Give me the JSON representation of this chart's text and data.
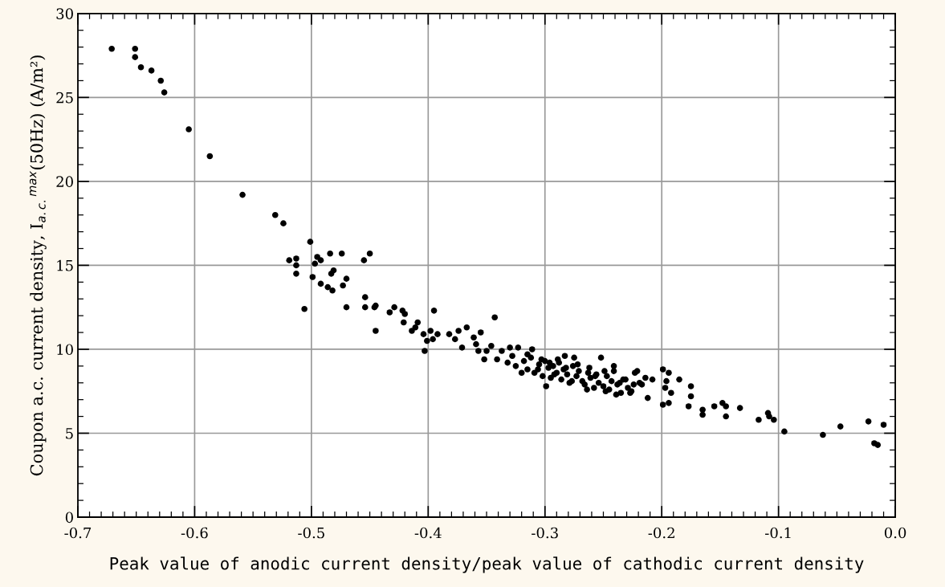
{
  "chart_data": {
    "type": "scatter",
    "xlabel": "Peak value of anodic current density/peak value of cathodic current density",
    "ylabel": "Coupon a.c. current density, I$_{a.c.}$$^{max}$(50Hz) (A/m²)",
    "xlim": [
      -0.7,
      0.0
    ],
    "xticks": [
      -0.7,
      -0.6,
      -0.5,
      -0.4,
      -0.3,
      -0.2,
      -0.1,
      {
        "value": 0,
        "label": "0.0"
      }
    ],
    "ylim": [
      0,
      30
    ],
    "yticks": [
      0,
      5,
      10,
      15,
      20,
      25,
      30
    ],
    "grid": true,
    "marker": "circle",
    "series": [
      {
        "color": "#000000",
        "x": [
          -0.671,
          -0.651,
          -0.651,
          -0.646,
          -0.637,
          -0.629,
          -0.626,
          -0.605,
          -0.587,
          -0.559,
          -0.531,
          -0.524,
          -0.501,
          -0.519,
          -0.513,
          -0.513,
          -0.513,
          -0.506,
          -0.499,
          -0.497,
          -0.495,
          -0.492,
          -0.492,
          -0.486,
          -0.484,
          -0.483,
          -0.481,
          -0.482,
          -0.474,
          -0.473,
          -0.47,
          -0.47,
          -0.455,
          -0.45,
          -0.454,
          -0.454,
          -0.446,
          -0.445,
          -0.445,
          -0.433,
          -0.429,
          -0.422,
          -0.42,
          -0.421,
          -0.409,
          -0.411,
          -0.414,
          -0.404,
          -0.398,
          -0.395,
          -0.392,
          -0.396,
          -0.401,
          -0.403,
          -0.382,
          -0.374,
          -0.367,
          -0.377,
          -0.371,
          -0.361,
          -0.355,
          -0.359,
          -0.357,
          -0.35,
          -0.346,
          -0.343,
          -0.352,
          -0.337,
          -0.33,
          -0.323,
          -0.311,
          -0.32,
          -0.299,
          -0.283,
          -0.275,
          -0.252,
          -0.241,
          -0.241,
          -0.264,
          -0.221,
          -0.223,
          -0.214,
          -0.208,
          -0.199,
          -0.194,
          -0.185,
          -0.175,
          -0.175,
          -0.177,
          -0.196,
          -0.197,
          -0.192,
          -0.199,
          -0.194,
          -0.212,
          -0.227,
          -0.239,
          -0.248,
          -0.217,
          -0.233,
          -0.277,
          -0.292,
          -0.306,
          -0.332,
          -0.341,
          -0.328,
          -0.325,
          -0.318,
          -0.315,
          -0.312,
          -0.309,
          -0.305,
          -0.302,
          -0.3,
          -0.297,
          -0.295,
          -0.293,
          -0.29,
          -0.288,
          -0.286,
          -0.284,
          -0.281,
          -0.279,
          -0.276,
          -0.273,
          -0.271,
          -0.268,
          -0.266,
          -0.263,
          -0.261,
          -0.258,
          -0.256,
          -0.254,
          -0.25,
          -0.247,
          -0.245,
          -0.243,
          -0.238,
          -0.235,
          -0.231,
          -0.229,
          -0.226,
          -0.224,
          -0.219,
          -0.315,
          -0.303,
          -0.296,
          -0.289,
          -0.282,
          -0.272,
          -0.262,
          -0.257,
          -0.249,
          -0.236,
          -0.165,
          -0.165,
          -0.155,
          -0.148,
          -0.145,
          -0.145,
          -0.133,
          -0.117,
          -0.109,
          -0.108,
          -0.104,
          -0.095,
          -0.062,
          -0.047,
          -0.023,
          -0.018,
          -0.015,
          -0.01
        ],
        "values": [
          27.9,
          27.4,
          27.9,
          26.8,
          26.6,
          26.0,
          25.3,
          23.1,
          21.5,
          19.2,
          18.0,
          17.5,
          16.4,
          15.3,
          15.4,
          15.0,
          14.5,
          12.4,
          14.3,
          15.1,
          15.5,
          15.3,
          13.9,
          13.7,
          15.7,
          14.5,
          14.7,
          13.5,
          15.7,
          13.8,
          14.2,
          12.5,
          15.3,
          15.7,
          13.1,
          12.5,
          12.5,
          12.6,
          11.1,
          12.2,
          12.5,
          12.3,
          12.1,
          11.6,
          11.6,
          11.3,
          11.1,
          10.9,
          11.1,
          12.3,
          10.9,
          10.6,
          10.5,
          9.9,
          10.9,
          11.1,
          11.3,
          10.6,
          10.1,
          10.7,
          11.0,
          10.3,
          9.9,
          9.9,
          10.2,
          11.9,
          9.4,
          9.9,
          10.1,
          10.1,
          10.0,
          8.6,
          7.8,
          9.6,
          9.5,
          9.5,
          9.0,
          8.7,
          7.6,
          8.7,
          8.6,
          8.3,
          8.2,
          8.8,
          8.6,
          8.2,
          7.8,
          7.2,
          6.6,
          8.1,
          7.7,
          7.4,
          6.7,
          6.8,
          7.1,
          7.4,
          7.3,
          7.5,
          7.9,
          8.2,
          8.1,
          8.5,
          8.8,
          9.2,
          9.4,
          9.6,
          9.0,
          9.3,
          8.8,
          9.5,
          8.6,
          9.1,
          8.4,
          9.3,
          8.9,
          8.3,
          9.0,
          8.6,
          9.2,
          8.2,
          8.8,
          8.5,
          8.0,
          9.0,
          8.4,
          8.7,
          8.1,
          7.9,
          8.6,
          8.3,
          7.7,
          8.5,
          8.0,
          7.8,
          8.4,
          7.6,
          8.1,
          7.9,
          7.4,
          8.2,
          7.7,
          7.5,
          7.9,
          8.0,
          9.7,
          9.4,
          9.2,
          9.4,
          8.9,
          9.1,
          8.9,
          8.4,
          8.7,
          8.0,
          6.4,
          6.1,
          6.6,
          6.8,
          6.6,
          6.0,
          6.5,
          5.8,
          6.2,
          6.0,
          5.8,
          5.1,
          4.9,
          5.4,
          5.7,
          4.4,
          4.3,
          5.5
        ]
      }
    ]
  }
}
